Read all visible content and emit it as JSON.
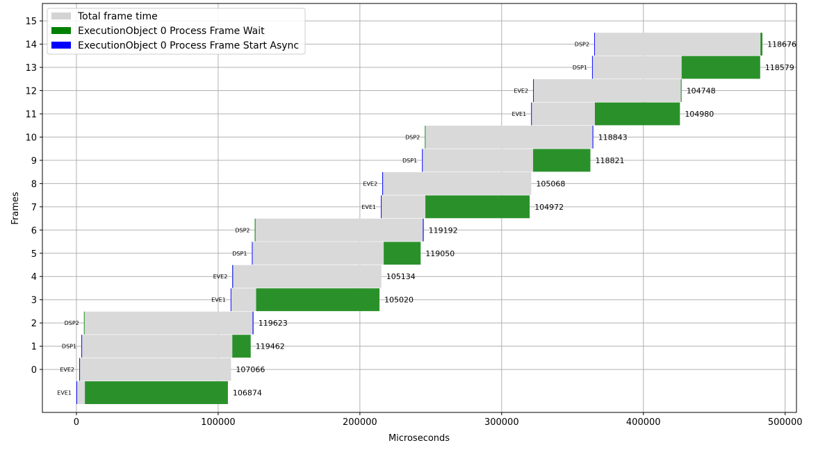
{
  "chart_data": {
    "type": "bar",
    "orientation": "horizontal-gantt",
    "title": "",
    "xlabel": "Microseconds",
    "ylabel": "Frames",
    "xlim": [
      -24000,
      508000
    ],
    "ylim": [
      -1.85,
      15.75
    ],
    "xticks": [
      0,
      100000,
      200000,
      300000,
      400000,
      500000
    ],
    "xtick_labels": [
      "0",
      "100000",
      "200000",
      "300000",
      "400000",
      "500000"
    ],
    "yticks": [
      0,
      1,
      2,
      3,
      4,
      5,
      6,
      7,
      8,
      9,
      10,
      11,
      12,
      13,
      14,
      15
    ],
    "ytick_labels": [
      "0",
      "1",
      "2",
      "3",
      "4",
      "5",
      "6",
      "7",
      "8",
      "9",
      "10",
      "11",
      "12",
      "13",
      "14",
      "15"
    ],
    "grid": true,
    "legend_position": "top-left",
    "series": [
      {
        "name": "Total frame time",
        "color": "#d9d9d9"
      },
      {
        "name": "ExecutionObject 0 Process Frame Wait",
        "color": "#2a912a"
      },
      {
        "name": "ExecutionObject 0 Process Frame Start Async",
        "color": "#1010ff"
      }
    ],
    "legend_swatch_colors": [
      "#d3d3d3",
      "#008000",
      "#0000ff"
    ],
    "rows": [
      {
        "device": "EVE1",
        "label": "106874",
        "start": 0,
        "end": 106874,
        "wait_start": 6000,
        "wait_end": 106874,
        "async_start": 0,
        "async_end": 400
      },
      {
        "device": "EVE2",
        "label": "107066",
        "start": 2000,
        "end": 109066,
        "wait_start": 2000,
        "wait_end": 2500,
        "async_start": 2000,
        "async_end": 2400
      },
      {
        "device": "DSP1",
        "label": "119462",
        "start": 3500,
        "end": 122962,
        "wait_start": 110000,
        "wait_end": 122962,
        "async_start": 3500,
        "async_end": 4000
      },
      {
        "device": "DSP2",
        "label": "119623",
        "start": 5300,
        "end": 124923,
        "wait_start": 5300,
        "wait_end": 5800,
        "async_start": 124300,
        "async_end": 124923
      },
      {
        "device": "EVE1",
        "label": "105020",
        "start": 108800,
        "end": 213820,
        "wait_start": 126800,
        "wait_end": 213820,
        "async_start": 108800,
        "async_end": 109300
      },
      {
        "device": "EVE2",
        "label": "105134",
        "start": 110000,
        "end": 215134,
        "wait_start": 110000,
        "wait_end": 110400,
        "async_start": 110000,
        "async_end": 110400
      },
      {
        "device": "DSP1",
        "label": "119050",
        "start": 123800,
        "end": 242850,
        "wait_start": 216800,
        "wait_end": 242850,
        "async_start": 123800,
        "async_end": 124300
      },
      {
        "device": "DSP2",
        "label": "119192",
        "start": 125800,
        "end": 244992,
        "wait_start": 125800,
        "wait_end": 126400,
        "async_start": 244400,
        "async_end": 244992
      },
      {
        "device": "EVE1",
        "label": "104972",
        "start": 214800,
        "end": 319772,
        "wait_start": 246200,
        "wait_end": 319772,
        "async_start": 214800,
        "async_end": 215300
      },
      {
        "device": "EVE2",
        "label": "105068",
        "start": 215800,
        "end": 320868,
        "wait_start": 215800,
        "wait_end": 216300,
        "async_start": 215800,
        "async_end": 216200
      },
      {
        "device": "DSP1",
        "label": "118821",
        "start": 243800,
        "end": 362621,
        "wait_start": 322200,
        "wait_end": 362621,
        "async_start": 243800,
        "async_end": 244300
      },
      {
        "device": "DSP2",
        "label": "118843",
        "start": 245800,
        "end": 364643,
        "wait_start": 245800,
        "wait_end": 246300,
        "async_start": 364100,
        "async_end": 364643
      },
      {
        "device": "EVE1",
        "label": "104980",
        "start": 320800,
        "end": 425780,
        "wait_start": 365800,
        "wait_end": 425780,
        "async_start": 320800,
        "async_end": 321300
      },
      {
        "device": "EVE2",
        "label": "104748",
        "start": 322200,
        "end": 426948,
        "wait_start": 426400,
        "wait_end": 426948,
        "async_start": 322200,
        "async_end": 322600
      },
      {
        "device": "DSP1",
        "label": "118579",
        "start": 363800,
        "end": 482379,
        "wait_start": 427000,
        "wait_end": 482379,
        "async_start": 363800,
        "async_end": 364300
      },
      {
        "device": "DSP2",
        "label": "118676",
        "start": 365300,
        "end": 483976,
        "wait_start": 482600,
        "wait_end": 483976,
        "async_start": 365300,
        "async_end": 365800
      }
    ]
  }
}
